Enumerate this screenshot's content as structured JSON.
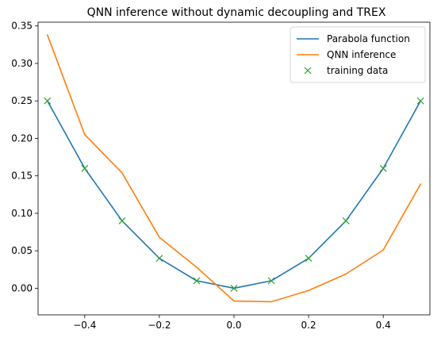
{
  "chart_data": {
    "type": "line",
    "title": "QNN inference without dynamic decoupling and TREX",
    "xlabel": "",
    "ylabel": "",
    "xlim": [
      -0.525,
      0.525
    ],
    "ylim": [
      -0.0355,
      0.355
    ],
    "xticks": [
      -0.4,
      -0.2,
      0.0,
      0.2,
      0.4
    ],
    "xtick_labels": [
      "−0.4",
      "−0.2",
      "0.0",
      "0.2",
      "0.4"
    ],
    "yticks": [
      0.0,
      0.05,
      0.1,
      0.15,
      0.2,
      0.25,
      0.3,
      0.35
    ],
    "ytick_labels": [
      "0.00",
      "0.05",
      "0.10",
      "0.15",
      "0.20",
      "0.25",
      "0.30",
      "0.35"
    ],
    "grid": false,
    "legend_position": "top-right",
    "x": [
      -0.5,
      -0.4,
      -0.3,
      -0.2,
      -0.1,
      0.0,
      0.1,
      0.2,
      0.3,
      0.4,
      0.5
    ],
    "series": [
      {
        "name": "Parabola function",
        "style": "line",
        "color": "#1f77b4",
        "values": [
          0.25,
          0.16,
          0.09,
          0.04,
          0.01,
          0.0,
          0.01,
          0.04,
          0.09,
          0.16,
          0.25
        ]
      },
      {
        "name": "QNN inference",
        "style": "line",
        "color": "#ff7f0e",
        "values": [
          0.338,
          0.205,
          0.154,
          0.068,
          0.028,
          -0.017,
          -0.018,
          -0.003,
          0.019,
          0.051,
          0.139
        ]
      },
      {
        "name": "training data",
        "style": "marker-x",
        "color": "#2ca02c",
        "values": [
          0.25,
          0.16,
          0.09,
          0.04,
          0.01,
          0.0,
          0.01,
          0.04,
          0.09,
          0.16,
          0.25
        ]
      }
    ]
  }
}
